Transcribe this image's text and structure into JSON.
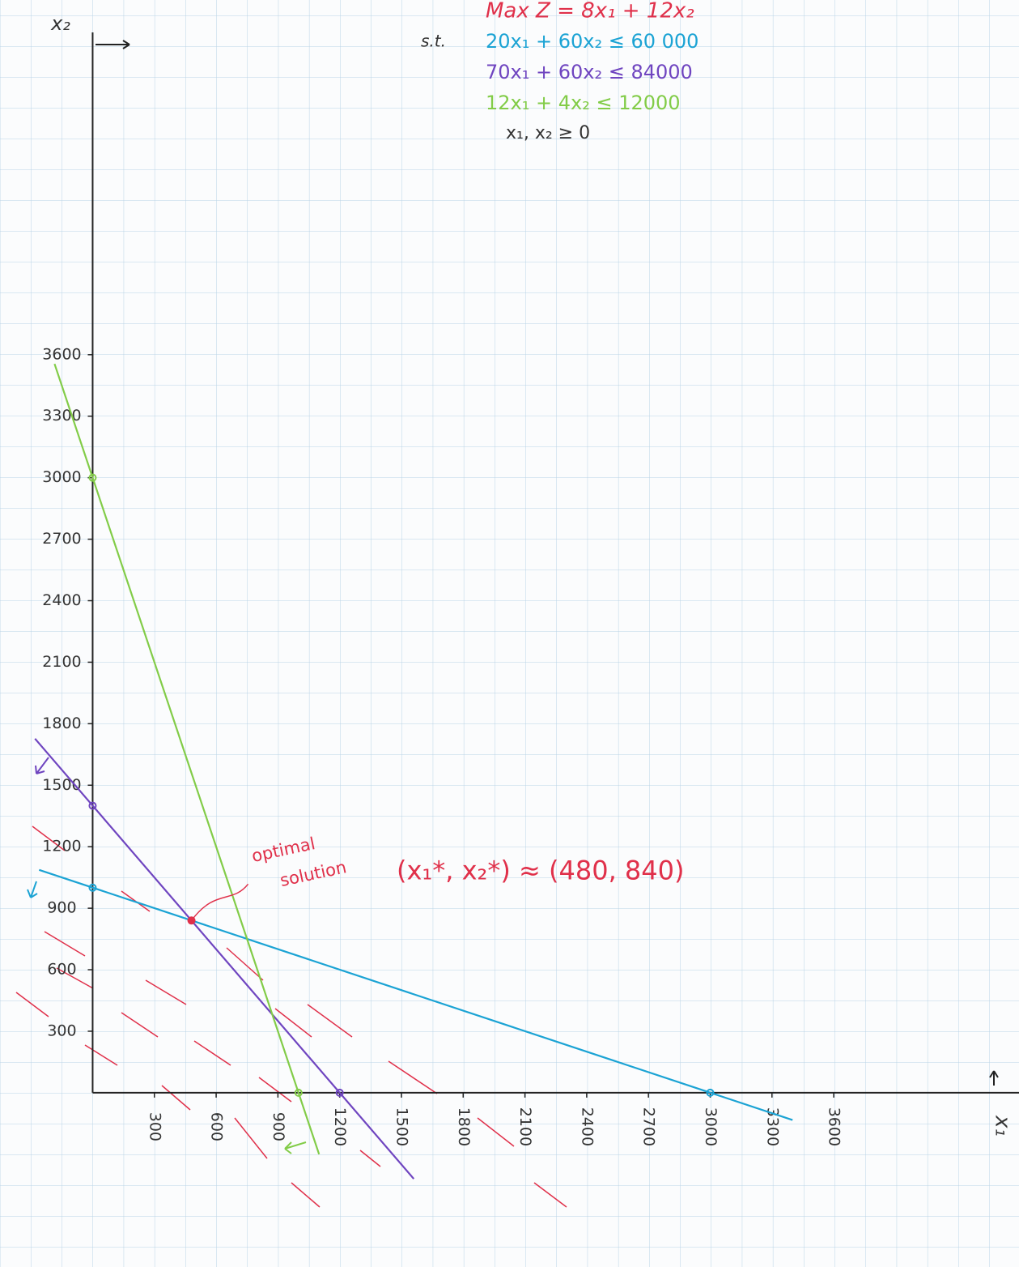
{
  "chart_data": {
    "type": "line",
    "title": "Max Z = 8x₁ + 12x₂",
    "title_color": "#e0304a",
    "constraints_label": "s.t.",
    "nonnegativity": "x₁, x₂ ≥ 0",
    "xlabel": "x₁",
    "ylabel": "x₂",
    "xlim": [
      -450,
      4500
    ],
    "ylim": [
      -850,
      5330
    ],
    "xticks": [
      300,
      600,
      900,
      1200,
      1500,
      1800,
      2100,
      2400,
      2700,
      3000,
      3300,
      3600
    ],
    "yticks": [
      300,
      600,
      900,
      1200,
      1500,
      1800,
      2100,
      2400,
      2700,
      3000,
      3300,
      3600
    ],
    "series": [
      {
        "name": "20x₁ + 60x₂ ≤ 60 000",
        "color": "#1ba3d4",
        "x": [
          -260,
          3400
        ],
        "values": [
          1087,
          -133
        ]
      },
      {
        "name": "70x₁ + 60x₂ ≤ 84000",
        "color": "#6f45c0",
        "x": [
          -280,
          1560
        ],
        "values": [
          1727,
          -420
        ]
      },
      {
        "name": "12x₁ + 4x₂ ≤ 12000",
        "color": "#82cc48",
        "x": [
          -185,
          1100
        ],
        "values": [
          3555,
          -300
        ]
      }
    ],
    "points": [
      {
        "x": 0,
        "y": 1000,
        "color": "#1ba3d4"
      },
      {
        "x": 3000,
        "y": 0,
        "color": "#1ba3d4"
      },
      {
        "x": 0,
        "y": 1400,
        "color": "#6f45c0"
      },
      {
        "x": 1200,
        "y": 0,
        "color": "#6f45c0"
      },
      {
        "x": 0,
        "y": 3000,
        "color": "#82cc48"
      },
      {
        "x": 1000,
        "y": 0,
        "color": "#82cc48"
      }
    ],
    "optimum": {
      "x": 480,
      "y": 840,
      "color": "#e0304a",
      "annotation": [
        "optimal",
        "solution"
      ],
      "label": "(x₁*, x₂*) ≈ (480, 840)"
    }
  }
}
